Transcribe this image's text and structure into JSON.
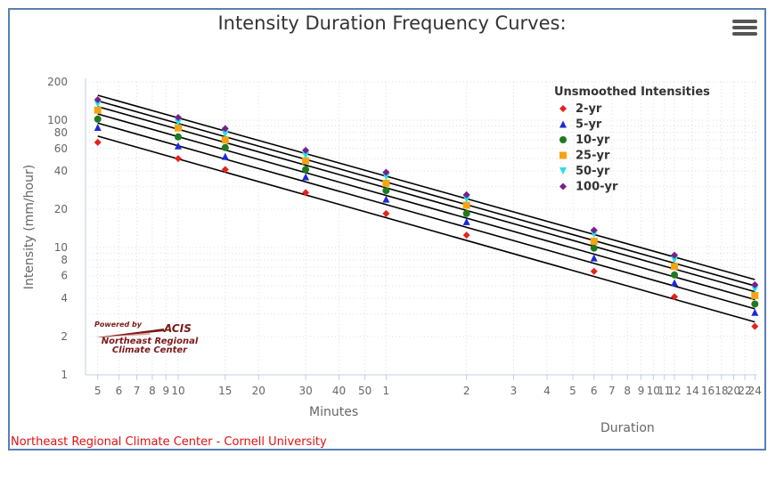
{
  "title": "Intensity Duration Frequency Curves:",
  "credit": "Northeast Regional Climate Center - Cornell University",
  "logo": {
    "powered": "Powered by",
    "acis": "ACIS",
    "org_line1": "Northeast Regional",
    "org_line2": "Climate Center"
  },
  "menu_icon": "hamburger-menu-icon",
  "colors": {
    "frame": "#5b7fb3",
    "credit": "#e01010",
    "curve": "#000000",
    "grid": "#cccccc"
  },
  "chart_data": {
    "type": "scatter",
    "title": "Intensity Duration Frequency Curves:",
    "ylabel": "Intensity (mm/hour)",
    "xlabel_minutes": "Minutes",
    "xlabel_hours": "Duration",
    "x_scale": "log",
    "y_scale": "log",
    "xlim_minutes": [
      4.5,
      1470
    ],
    "ylim": [
      1,
      200
    ],
    "grid": true,
    "y_ticks": [
      {
        "value": 1,
        "label": "1"
      },
      {
        "value": 2,
        "label": "2"
      },
      {
        "value": 4,
        "label": "4"
      },
      {
        "value": 6,
        "label": "6"
      },
      {
        "value": 8,
        "label": "8"
      },
      {
        "value": 10,
        "label": "10"
      },
      {
        "value": 20,
        "label": "20"
      },
      {
        "value": 40,
        "label": "40"
      },
      {
        "value": 60,
        "label": "60"
      },
      {
        "value": 80,
        "label": "80"
      },
      {
        "value": 100,
        "label": "100"
      },
      {
        "value": 200,
        "label": "200"
      }
    ],
    "x_ticks": [
      {
        "minutes": 5,
        "label": "5"
      },
      {
        "minutes": 6,
        "label": "6"
      },
      {
        "minutes": 7,
        "label": "7"
      },
      {
        "minutes": 8,
        "label": "8"
      },
      {
        "minutes": 9,
        "label": "9"
      },
      {
        "minutes": 10,
        "label": "10"
      },
      {
        "minutes": 15,
        "label": "15"
      },
      {
        "minutes": 20,
        "label": "20"
      },
      {
        "minutes": 30,
        "label": "30"
      },
      {
        "minutes": 40,
        "label": "40"
      },
      {
        "minutes": 50,
        "label": "50"
      },
      {
        "minutes": 60,
        "label": "1"
      },
      {
        "minutes": 120,
        "label": "2"
      },
      {
        "minutes": 180,
        "label": "3"
      },
      {
        "minutes": 240,
        "label": "4"
      },
      {
        "minutes": 300,
        "label": "5"
      },
      {
        "minutes": 360,
        "label": "6"
      },
      {
        "minutes": 420,
        "label": "7"
      },
      {
        "minutes": 480,
        "label": "8"
      },
      {
        "minutes": 540,
        "label": "9"
      },
      {
        "minutes": 600,
        "label": "10"
      },
      {
        "minutes": 660,
        "label": "11"
      },
      {
        "minutes": 720,
        "label": "12"
      },
      {
        "minutes": 840,
        "label": "14"
      },
      {
        "minutes": 960,
        "label": "16"
      },
      {
        "minutes": 1080,
        "label": "18"
      },
      {
        "minutes": 1200,
        "label": "20"
      },
      {
        "minutes": 1320,
        "label": "22"
      },
      {
        "minutes": 1440,
        "label": "24"
      }
    ],
    "durations_minutes": [
      5,
      10,
      15,
      30,
      60,
      120,
      360,
      720,
      1440
    ],
    "legend": {
      "title": "Unsmoothed Intensities",
      "position": "top-right"
    },
    "series": [
      {
        "name": "2-yr",
        "color": "#e8211b",
        "marker": "diamond",
        "values": [
          67,
          50,
          41,
          27,
          18.5,
          12.5,
          6.5,
          4.1,
          2.4
        ],
        "fit": [
          75,
          2.6
        ]
      },
      {
        "name": "5-yr",
        "color": "#1c29d8",
        "marker": "triangle",
        "values": [
          88,
          63,
          52,
          36,
          24,
          16,
          8.3,
          5.3,
          3.1
        ],
        "fit": [
          95,
          3.3
        ]
      },
      {
        "name": "10-yr",
        "color": "#1f7a1f",
        "marker": "circle",
        "values": [
          102,
          74,
          61,
          41,
          28,
          18.5,
          9.9,
          6.1,
          3.6
        ],
        "fit": [
          112,
          3.9
        ]
      },
      {
        "name": "25-yr",
        "color": "#f7a311",
        "marker": "square",
        "values": [
          120,
          87,
          70,
          48,
          32,
          21.5,
          11.2,
          7.1,
          4.2
        ],
        "fit": [
          128,
          4.5
        ]
      },
      {
        "name": "50-yr",
        "color": "#26e0e8",
        "marker": "triangle-down",
        "values": [
          134,
          96,
          78,
          53,
          36,
          24,
          12.7,
          8,
          4.7
        ],
        "fit": [
          142,
          5.0
        ]
      },
      {
        "name": "100-yr",
        "color": "#7a1f8c",
        "marker": "diamond",
        "values": [
          145,
          105,
          86,
          58,
          39,
          26,
          13.7,
          8.7,
          5.1
        ],
        "fit": [
          157,
          5.6
        ]
      }
    ]
  }
}
